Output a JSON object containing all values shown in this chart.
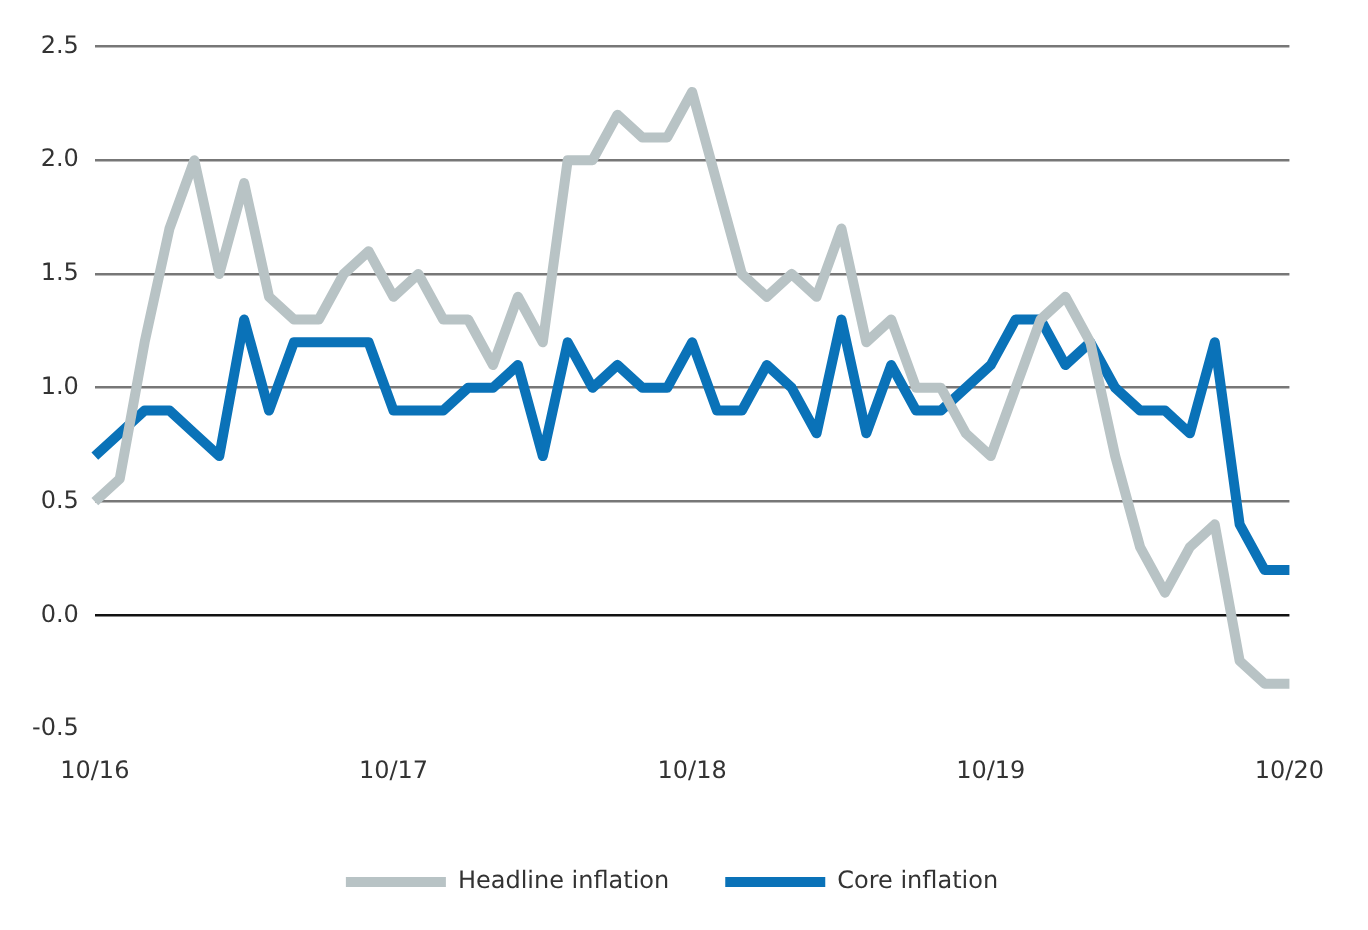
{
  "chart_data": {
    "type": "line",
    "categories": [
      "10/16",
      null,
      null,
      null,
      null,
      null,
      null,
      null,
      null,
      null,
      null,
      null,
      "10/17",
      null,
      null,
      null,
      null,
      null,
      null,
      null,
      null,
      null,
      null,
      null,
      "10/18",
      null,
      null,
      null,
      null,
      null,
      null,
      null,
      null,
      null,
      null,
      null,
      "10/19",
      null,
      null,
      null,
      null,
      null,
      null,
      null,
      null,
      null,
      null,
      null,
      "10/20"
    ],
    "series": [
      {
        "name": "Headline inflation",
        "color": "#b8c3c5",
        "values": [
          0.5,
          0.6,
          1.2,
          1.7,
          2.0,
          1.5,
          1.9,
          1.4,
          1.3,
          1.3,
          1.5,
          1.6,
          1.4,
          1.5,
          1.3,
          1.3,
          1.1,
          1.4,
          1.2,
          2.0,
          2.0,
          2.2,
          2.1,
          2.1,
          2.3,
          1.9,
          1.5,
          1.4,
          1.5,
          1.4,
          1.7,
          1.2,
          1.3,
          1.0,
          1.0,
          0.8,
          0.7,
          1.0,
          1.3,
          1.4,
          1.2,
          0.7,
          0.3,
          0.1,
          0.3,
          0.4,
          -0.2,
          -0.3,
          -0.3
        ]
      },
      {
        "name": "Core inflation",
        "color": "#0a72b8",
        "values": [
          0.7,
          0.8,
          0.9,
          0.9,
          0.8,
          0.7,
          1.3,
          0.9,
          1.2,
          1.2,
          1.2,
          1.2,
          0.9,
          0.9,
          0.9,
          1.0,
          1.0,
          1.1,
          0.7,
          1.2,
          1.0,
          1.1,
          1.0,
          1.0,
          1.2,
          0.9,
          0.9,
          1.1,
          1.0,
          0.8,
          1.3,
          0.8,
          1.1,
          0.9,
          0.9,
          1.0,
          1.1,
          1.3,
          1.3,
          1.1,
          1.2,
          1.0,
          0.9,
          0.9,
          0.8,
          1.2,
          0.4,
          0.2,
          0.2
        ]
      }
    ],
    "ylim": [
      -0.5,
      2.5
    ],
    "yticks": [
      {
        "value": -0.5,
        "label": "-0.5"
      },
      {
        "value": 0,
        "label": "0.0"
      },
      {
        "value": 0.5,
        "label": "0.5"
      },
      {
        "value": 1,
        "label": "1.0"
      },
      {
        "value": 1.5,
        "label": "1.5"
      },
      {
        "value": 2,
        "label": "2.0"
      },
      {
        "value": 2.5,
        "label": "2.5"
      }
    ],
    "grid": "y",
    "legend": "bottom",
    "marker": "none",
    "line_style": "solid"
  }
}
